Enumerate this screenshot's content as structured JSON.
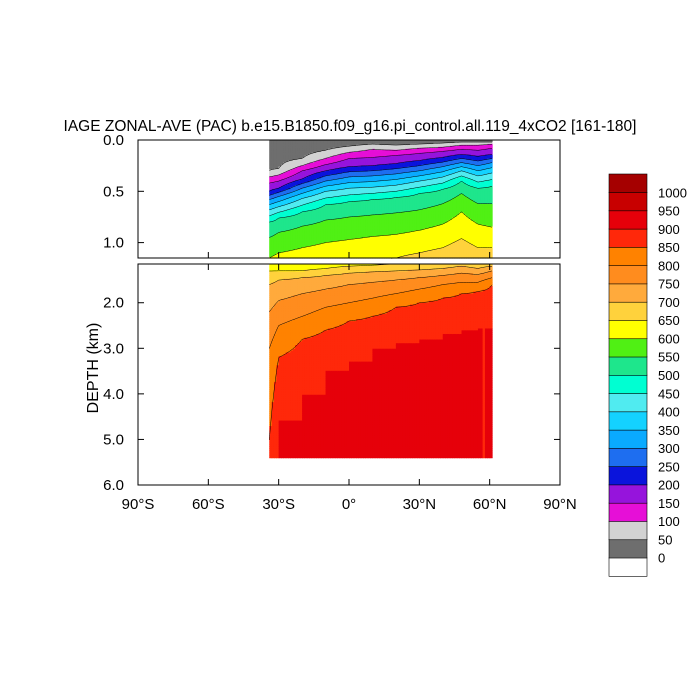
{
  "chart_data": {
    "type": "heatmap",
    "title": "IAGE ZONAL-AVE (PAC) b.e15.B1850.f09_g16.pi_control.all.119_4xCO2 [161-180]",
    "ylabel": "DEPTH (km)",
    "xlabel": "",
    "x_ticks": [
      "90°S",
      "60°S",
      "30°S",
      "0°",
      "30°N",
      "60°N",
      "90°N"
    ],
    "x_range": [
      -90,
      90
    ],
    "upper_panel": {
      "ylim": [
        0.0,
        1.15
      ],
      "y_ticks": [
        "0.0",
        "0.5",
        "1.0"
      ],
      "y_values": [
        0.0,
        0.5,
        1.0
      ]
    },
    "lower_panel": {
      "ylim": [
        1.15,
        6.0
      ],
      "y_ticks": [
        "2.0",
        "3.0",
        "4.0",
        "5.0",
        "6.0"
      ],
      "y_values": [
        2.0,
        3.0,
        4.0,
        5.0,
        6.0
      ]
    },
    "data_extent": {
      "lat_min": -34,
      "lat_max": 61,
      "depth_max_km": 5.4
    },
    "colorbar": {
      "levels": [
        "0",
        "50",
        "100",
        "150",
        "200",
        "250",
        "300",
        "350",
        "400",
        "450",
        "500",
        "550",
        "600",
        "650",
        "700",
        "750",
        "800",
        "850",
        "900",
        "950",
        "1000"
      ],
      "colors": [
        "#ffffff",
        "#6e6e6e",
        "#d2d2d2",
        "#e60fd7",
        "#9614dc",
        "#0a14dc",
        "#1e6ef0",
        "#0aaaff",
        "#14d2ff",
        "#50ebf0",
        "#00ffd2",
        "#1ee68c",
        "#50f014",
        "#ffff00",
        "#ffd23c",
        "#ffaa3c",
        "#ff8c1e",
        "#ff8200",
        "#ff280a",
        "#e6000a",
        "#c80000",
        "#a50000"
      ]
    },
    "profiles": [
      {
        "lat": -34,
        "values": [
          [
            0.0,
            0
          ],
          [
            0.3,
            50
          ],
          [
            0.36,
            100
          ],
          [
            0.42,
            150
          ],
          [
            0.5,
            200
          ],
          [
            0.58,
            300
          ],
          [
            0.68,
            400
          ],
          [
            0.8,
            500
          ],
          [
            0.95,
            550
          ],
          [
            1.15,
            600
          ],
          [
            1.3,
            650
          ],
          [
            1.6,
            700
          ],
          [
            2.2,
            750
          ],
          [
            3.0,
            800
          ],
          [
            5.0,
            850
          ],
          [
            5.4,
            850
          ]
        ]
      },
      {
        "lat": -30,
        "values": [
          [
            0.0,
            0
          ],
          [
            0.28,
            50
          ],
          [
            0.34,
            100
          ],
          [
            0.4,
            150
          ],
          [
            0.47,
            200
          ],
          [
            0.55,
            300
          ],
          [
            0.65,
            400
          ],
          [
            0.76,
            500
          ],
          [
            0.9,
            550
          ],
          [
            1.1,
            600
          ],
          [
            1.3,
            650
          ],
          [
            1.5,
            700
          ],
          [
            1.95,
            750
          ],
          [
            2.5,
            800
          ],
          [
            3.2,
            850
          ],
          [
            4.6,
            900
          ],
          [
            5.4,
            900
          ]
        ]
      },
      {
        "lat": -20,
        "values": [
          [
            0.0,
            0
          ],
          [
            0.18,
            50
          ],
          [
            0.25,
            100
          ],
          [
            0.3,
            150
          ],
          [
            0.38,
            200
          ],
          [
            0.47,
            300
          ],
          [
            0.57,
            400
          ],
          [
            0.7,
            500
          ],
          [
            0.84,
            550
          ],
          [
            1.05,
            600
          ],
          [
            1.3,
            650
          ],
          [
            1.45,
            700
          ],
          [
            1.8,
            750
          ],
          [
            2.3,
            800
          ],
          [
            2.8,
            850
          ],
          [
            4.0,
            900
          ],
          [
            5.4,
            900
          ]
        ]
      },
      {
        "lat": -10,
        "values": [
          [
            0.0,
            0
          ],
          [
            0.1,
            50
          ],
          [
            0.18,
            100
          ],
          [
            0.24,
            150
          ],
          [
            0.3,
            200
          ],
          [
            0.4,
            300
          ],
          [
            0.5,
            400
          ],
          [
            0.63,
            500
          ],
          [
            0.78,
            550
          ],
          [
            1.0,
            600
          ],
          [
            1.25,
            650
          ],
          [
            1.4,
            700
          ],
          [
            1.7,
            750
          ],
          [
            2.1,
            800
          ],
          [
            2.6,
            850
          ],
          [
            3.5,
            900
          ],
          [
            5.4,
            900
          ]
        ]
      },
      {
        "lat": 0,
        "values": [
          [
            0.0,
            0
          ],
          [
            0.06,
            50
          ],
          [
            0.12,
            100
          ],
          [
            0.18,
            150
          ],
          [
            0.26,
            200
          ],
          [
            0.36,
            300
          ],
          [
            0.47,
            400
          ],
          [
            0.6,
            500
          ],
          [
            0.75,
            550
          ],
          [
            0.97,
            600
          ],
          [
            1.2,
            650
          ],
          [
            1.35,
            700
          ],
          [
            1.6,
            750
          ],
          [
            2.0,
            800
          ],
          [
            2.4,
            850
          ],
          [
            3.3,
            900
          ],
          [
            5.4,
            900
          ]
        ]
      },
      {
        "lat": 10,
        "values": [
          [
            0.0,
            0
          ],
          [
            0.04,
            50
          ],
          [
            0.09,
            100
          ],
          [
            0.17,
            150
          ],
          [
            0.25,
            200
          ],
          [
            0.35,
            300
          ],
          [
            0.46,
            400
          ],
          [
            0.58,
            500
          ],
          [
            0.73,
            550
          ],
          [
            0.94,
            600
          ],
          [
            1.18,
            650
          ],
          [
            1.32,
            700
          ],
          [
            1.55,
            750
          ],
          [
            1.9,
            800
          ],
          [
            2.3,
            850
          ],
          [
            3.0,
            900
          ],
          [
            5.4,
            900
          ]
        ]
      },
      {
        "lat": 20,
        "values": [
          [
            0.0,
            0
          ],
          [
            0.05,
            50
          ],
          [
            0.1,
            100
          ],
          [
            0.15,
            150
          ],
          [
            0.23,
            200
          ],
          [
            0.33,
            300
          ],
          [
            0.44,
            400
          ],
          [
            0.56,
            500
          ],
          [
            0.71,
            550
          ],
          [
            0.92,
            600
          ],
          [
            1.15,
            650
          ],
          [
            1.3,
            700
          ],
          [
            1.5,
            750
          ],
          [
            1.8,
            800
          ],
          [
            2.1,
            850
          ],
          [
            2.9,
            900
          ],
          [
            5.4,
            900
          ]
        ]
      },
      {
        "lat": 30,
        "values": [
          [
            0.0,
            0
          ],
          [
            0.04,
            50
          ],
          [
            0.08,
            100
          ],
          [
            0.13,
            150
          ],
          [
            0.2,
            200
          ],
          [
            0.3,
            300
          ],
          [
            0.4,
            400
          ],
          [
            0.52,
            500
          ],
          [
            0.68,
            550
          ],
          [
            0.88,
            600
          ],
          [
            1.1,
            650
          ],
          [
            1.28,
            700
          ],
          [
            1.45,
            750
          ],
          [
            1.7,
            800
          ],
          [
            2.0,
            850
          ],
          [
            2.8,
            900
          ],
          [
            5.4,
            900
          ]
        ]
      },
      {
        "lat": 40,
        "values": [
          [
            0.0,
            0
          ],
          [
            0.03,
            50
          ],
          [
            0.07,
            100
          ],
          [
            0.11,
            150
          ],
          [
            0.17,
            200
          ],
          [
            0.26,
            300
          ],
          [
            0.36,
            400
          ],
          [
            0.48,
            500
          ],
          [
            0.62,
            550
          ],
          [
            0.82,
            600
          ],
          [
            1.05,
            650
          ],
          [
            1.25,
            700
          ],
          [
            1.4,
            750
          ],
          [
            1.6,
            800
          ],
          [
            1.9,
            850
          ],
          [
            2.7,
            900
          ],
          [
            5.4,
            900
          ]
        ]
      },
      {
        "lat": 48,
        "values": [
          [
            0.0,
            0
          ],
          [
            0.02,
            50
          ],
          [
            0.05,
            100
          ],
          [
            0.09,
            150
          ],
          [
            0.14,
            200
          ],
          [
            0.22,
            300
          ],
          [
            0.3,
            400
          ],
          [
            0.4,
            500
          ],
          [
            0.52,
            550
          ],
          [
            0.7,
            600
          ],
          [
            0.96,
            650
          ],
          [
            1.2,
            700
          ],
          [
            1.35,
            750
          ],
          [
            1.55,
            800
          ],
          [
            1.8,
            850
          ],
          [
            2.6,
            900
          ],
          [
            5.4,
            900
          ]
        ]
      },
      {
        "lat": 55,
        "values": [
          [
            0.0,
            0
          ],
          [
            0.02,
            50
          ],
          [
            0.05,
            100
          ],
          [
            0.1,
            150
          ],
          [
            0.16,
            200
          ],
          [
            0.25,
            300
          ],
          [
            0.35,
            400
          ],
          [
            0.47,
            500
          ],
          [
            0.62,
            550
          ],
          [
            0.82,
            600
          ],
          [
            1.05,
            650
          ],
          [
            1.25,
            700
          ],
          [
            1.38,
            750
          ],
          [
            1.55,
            800
          ],
          [
            1.75,
            850
          ],
          [
            2.55,
            900
          ],
          [
            5.4,
            900
          ]
        ]
      },
      {
        "lat": 61,
        "values": [
          [
            0.0,
            0
          ],
          [
            0.02,
            50
          ],
          [
            0.04,
            100
          ],
          [
            0.08,
            150
          ],
          [
            0.14,
            200
          ],
          [
            0.22,
            300
          ],
          [
            0.32,
            400
          ],
          [
            0.45,
            500
          ],
          [
            0.62,
            550
          ],
          [
            0.85,
            600
          ],
          [
            1.05,
            650
          ],
          [
            1.2,
            700
          ],
          [
            1.3,
            750
          ],
          [
            1.45,
            800
          ],
          [
            1.6,
            850
          ],
          [
            2.5,
            900
          ],
          [
            5.4,
            900
          ]
        ]
      }
    ]
  }
}
